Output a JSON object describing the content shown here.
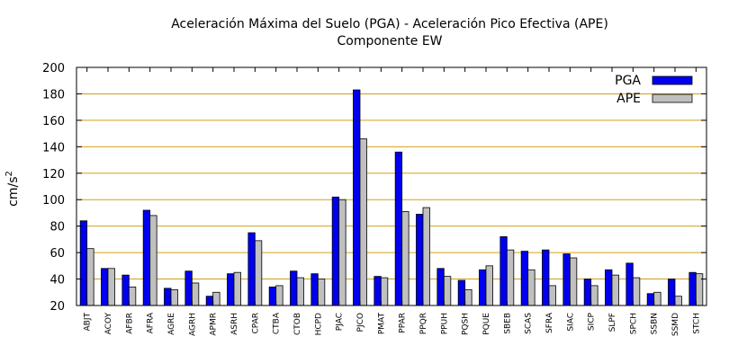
{
  "chart_data": {
    "type": "bar",
    "title": "Aceleración Máxima del Suelo (PGA) -  Aceleración Pico Efectiva (APE)",
    "subtitle": "Componente EW",
    "ylabel": "cm/s",
    "ylabel_sup": "2",
    "xlabel": "",
    "ylim": [
      20,
      200
    ],
    "yticks": [
      20,
      40,
      60,
      80,
      100,
      120,
      140,
      160,
      180,
      200
    ],
    "grid": true,
    "legend_position": "top-right",
    "categories": [
      "ABJT",
      "ACOY",
      "AFBR",
      "AFRA",
      "AGRE",
      "AGRH",
      "APMR",
      "ASRH",
      "CPAR",
      "CTBA",
      "CTOB",
      "HCPD",
      "PJAC",
      "PJCO",
      "PMAT",
      "PPAR",
      "PPQR",
      "PPUH",
      "PQSH",
      "PQUE",
      "SBEB",
      "SCAS",
      "SFRA",
      "SIAC",
      "SICP",
      "SLPF",
      "SPCH",
      "SSBN",
      "SSMD",
      "STCH"
    ],
    "series": [
      {
        "name": "PGA",
        "color": "#0000ee",
        "values": [
          84,
          48,
          43,
          92,
          33,
          46,
          27,
          44,
          75,
          34,
          46,
          44,
          102,
          183,
          42,
          136,
          89,
          48,
          39,
          47,
          72,
          61,
          62,
          59,
          40,
          47,
          52,
          29,
          40,
          45
        ]
      },
      {
        "name": "APE",
        "color": "#c0c0c0",
        "values": [
          63,
          48,
          34,
          88,
          32,
          37,
          30,
          45,
          69,
          35,
          41,
          40,
          100,
          146,
          41,
          91,
          94,
          42,
          32,
          50,
          62,
          47,
          35,
          56,
          35,
          43,
          41,
          30,
          27,
          44
        ]
      }
    ],
    "colors": {
      "grid": "#d4a017",
      "axis": "#000000"
    }
  }
}
